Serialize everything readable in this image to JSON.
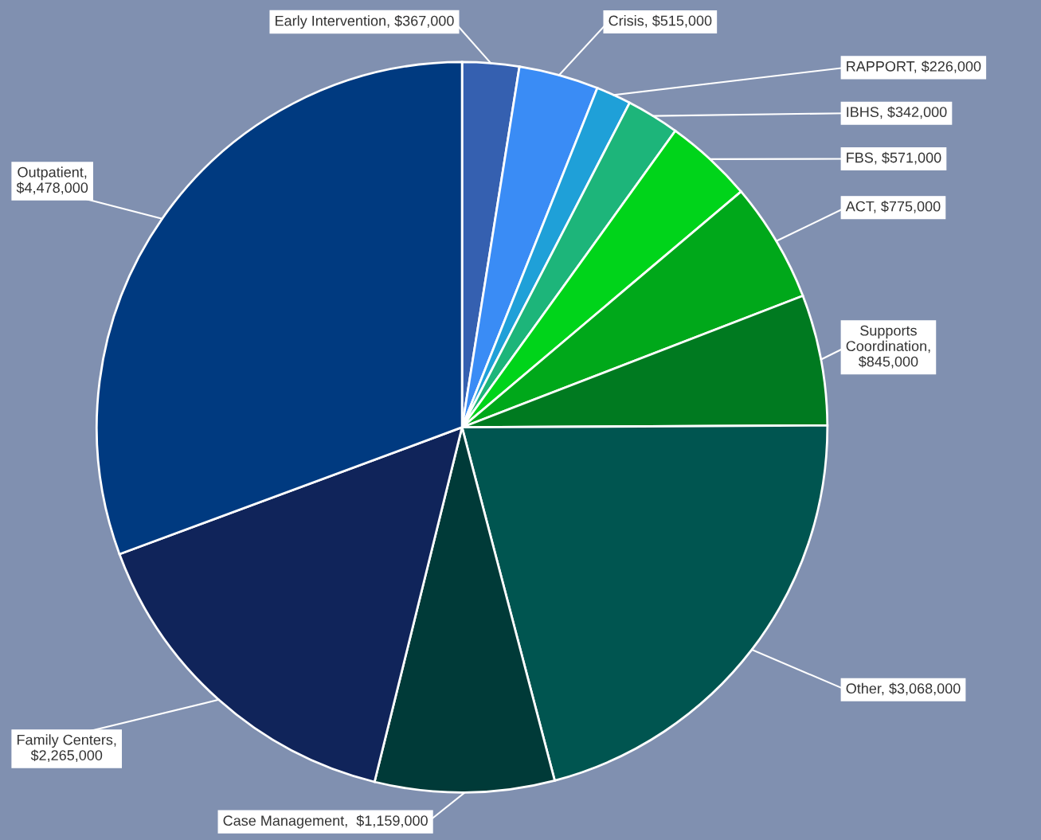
{
  "chart_data": {
    "type": "pie",
    "categories": [
      "Early Intervention, $367,000",
      "Crisis, $515,000",
      "RAPPORT, $226,000",
      "IBHS, $342,000",
      "FBS, $571,000",
      "ACT, $775,000",
      "Supports\nCoordination,\n$845,000",
      "Other, $3,068,000",
      "Case Management,  $1,159,000",
      "Family Centers,\n$2,265,000",
      "Outpatient,\n$4,478,000"
    ],
    "values": [
      367000,
      515000,
      226000,
      342000,
      571000,
      775000,
      845000,
      3068000,
      1159000,
      2265000,
      4478000
    ],
    "colors": [
      "#3560b0",
      "#3a8cf5",
      "#1fa0d8",
      "#1db57a",
      "#00d41a",
      "#00a81a",
      "#007a20",
      "#005550",
      "#003a38",
      "#10245a",
      "#003a80"
    ]
  }
}
